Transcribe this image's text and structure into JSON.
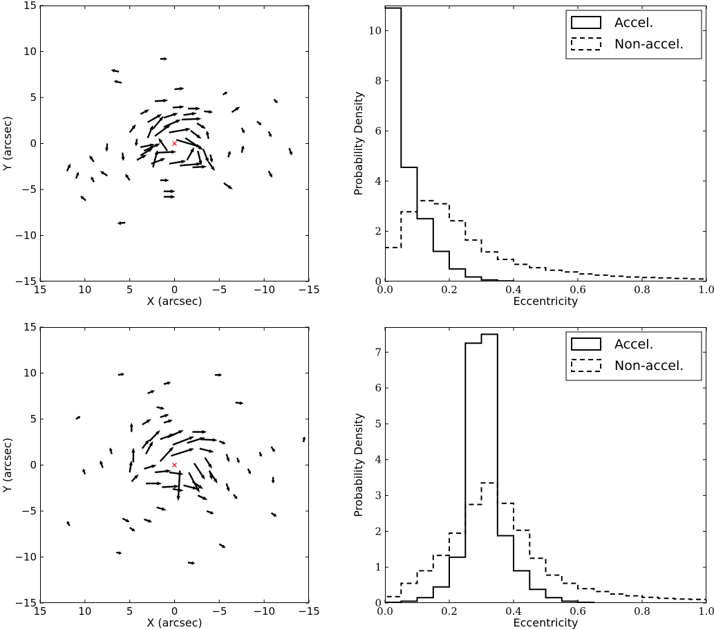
{
  "chart_data": [
    {
      "type": "scatter",
      "subtype": "velocity-vector-map",
      "panel": "top-left",
      "xlabel": "X (arcsec)",
      "ylabel": "Y (arcsec)",
      "xlim": [
        15,
        -15
      ],
      "ylim": [
        -15,
        15
      ],
      "xticks": [
        15,
        10,
        5,
        0,
        -5,
        -10,
        -15
      ],
      "yticks": [
        -15,
        -10,
        -5,
        0,
        5,
        10,
        15
      ],
      "xtick_labels": [
        "15",
        "10",
        "5",
        "0",
        "−5",
        "−10",
        "−15"
      ],
      "ytick_labels": [
        "−15",
        "−10",
        "−5",
        "0",
        "5",
        "10",
        "15"
      ],
      "center_marker": {
        "x": 0,
        "y": 0,
        "symbol": "x",
        "color": "#ff0000"
      },
      "arrow_color": "#000000",
      "arrows": [
        [
          1.6,
          9.2,
          -0.8,
          0.0
        ],
        [
          6.2,
          7.8,
          0.9,
          0.2
        ],
        [
          5.9,
          6.6,
          0.9,
          0.2
        ],
        [
          0.0,
          5.9,
          -1.1,
          0.1
        ],
        [
          2.2,
          4.6,
          -1.5,
          0.1
        ],
        [
          -5.4,
          5.3,
          -0.5,
          0.3
        ],
        [
          -11.1,
          4.8,
          -0.4,
          -0.4
        ],
        [
          -6.4,
          3.4,
          -0.9,
          0.6
        ],
        [
          -9.2,
          2.4,
          -0.5,
          -0.4
        ],
        [
          -7.5,
          1.7,
          -0.3,
          -0.6
        ],
        [
          -10.5,
          1.3,
          -0.3,
          -0.6
        ],
        [
          -12.8,
          -0.5,
          -0.3,
          -0.8
        ],
        [
          -10.5,
          -3.0,
          -0.4,
          -0.7
        ],
        [
          -5.5,
          -4.3,
          -1.0,
          -0.7
        ],
        [
          -6.0,
          -1.5,
          -0.2,
          0.7
        ],
        [
          -7.5,
          -1.0,
          -0.2,
          0.8
        ],
        [
          -3.8,
          0.5,
          0.2,
          0.9
        ],
        [
          1.6,
          -4.0,
          -1.0,
          0.0
        ],
        [
          1.2,
          -5.2,
          -1.3,
          0.0
        ],
        [
          1.2,
          -5.8,
          -1.3,
          0.0
        ],
        [
          5.5,
          -8.6,
          0.9,
          -0.1
        ],
        [
          9.9,
          -6.2,
          0.6,
          0.5
        ],
        [
          7.5,
          -3.5,
          0.8,
          0.5
        ],
        [
          5.0,
          -4.0,
          0.5,
          0.7
        ],
        [
          9.0,
          -4.2,
          0.3,
          0.6
        ],
        [
          11.0,
          -3.8,
          -0.3,
          0.7
        ],
        [
          12.0,
          -3.0,
          -0.4,
          0.8
        ],
        [
          9.0,
          -2.0,
          0.5,
          0.7
        ],
        [
          7.5,
          0.0,
          0.1,
          -0.9
        ],
        [
          5.8,
          -1.0,
          -0.1,
          -0.9
        ],
        [
          5.0,
          1.2,
          -0.7,
          0.9
        ],
        [
          4.2,
          0.5,
          0.1,
          -0.8
        ],
        [
          3.8,
          3.2,
          -1.0,
          0.5
        ],
        [
          0.2,
          3.9,
          -1.3,
          0.1
        ],
        [
          -1.5,
          3.8,
          -1.4,
          0.0
        ],
        [
          -3.3,
          3.5,
          -1.0,
          -0.1
        ],
        [
          -1.0,
          3.1,
          -1.5,
          0.2
        ],
        [
          1.2,
          2.8,
          -1.6,
          0.5
        ],
        [
          3.0,
          2.3,
          -1.6,
          0.9
        ],
        [
          -2.5,
          2.2,
          -1.0,
          -0.6
        ],
        [
          -0.8,
          2.6,
          -2.2,
          0.1
        ],
        [
          2.4,
          1.6,
          -1.2,
          1.4
        ],
        [
          1.2,
          1.8,
          -1.9,
          0.8
        ],
        [
          -1.8,
          1.4,
          -1.2,
          -0.9
        ],
        [
          0.6,
          1.2,
          -2.4,
          0.4
        ],
        [
          -0.2,
          0.4,
          -2.8,
          -0.8
        ],
        [
          3.0,
          0.6,
          -0.6,
          1.4
        ],
        [
          2.2,
          0.8,
          -1.8,
          1.3
        ],
        [
          -1.2,
          0.6,
          -2.0,
          -1.3
        ],
        [
          -3.2,
          -0.6,
          -0.6,
          -1.5
        ],
        [
          -4.0,
          -1.2,
          -0.2,
          -0.9
        ],
        [
          -2.6,
          -0.8,
          -0.4,
          -1.6
        ],
        [
          -1.4,
          -1.8,
          -0.8,
          1.4
        ],
        [
          -0.6,
          -2.4,
          -2.4,
          0.2
        ],
        [
          0.6,
          -2.2,
          -1.9,
          0.3
        ],
        [
          2.6,
          -2.2,
          -1.6,
          0.6
        ],
        [
          3.8,
          -1.3,
          -1.4,
          0.8
        ],
        [
          3.8,
          -0.4,
          -1.6,
          0.3
        ],
        [
          4.2,
          -1.8,
          -1.1,
          0.6
        ],
        [
          2.0,
          -1.0,
          -2.2,
          0.1
        ],
        [
          0.8,
          -0.8,
          1.0,
          1.4
        ],
        [
          2.4,
          -2.6,
          -0.5,
          1.9
        ],
        [
          3.4,
          -0.8,
          -1.8,
          0.8
        ],
        [
          -2.0,
          -2.6,
          -1.6,
          0.1
        ],
        [
          -3.8,
          -2.0,
          -0.7,
          -1.0
        ]
      ]
    },
    {
      "type": "histogram",
      "panel": "top-right",
      "xlabel": "Eccentricity",
      "ylabel": "Probability Density",
      "xlim": [
        0.0,
        1.0
      ],
      "ylim": [
        0,
        11.0
      ],
      "xticks": [
        0.0,
        0.2,
        0.4,
        0.6,
        0.8,
        1.0
      ],
      "yticks": [
        0,
        2,
        4,
        6,
        8,
        10
      ],
      "xtick_labels": [
        "0.0",
        "0.2",
        "0.4",
        "0.6",
        "0.8",
        "1.0"
      ],
      "ytick_labels": [
        "0",
        "2",
        "4",
        "6",
        "8",
        "10"
      ],
      "bin_edges": [
        0.0,
        0.05,
        0.1,
        0.15,
        0.2,
        0.25,
        0.3,
        0.35,
        0.4,
        0.45,
        0.5,
        0.55,
        0.6,
        0.65,
        0.7,
        0.75,
        0.8,
        0.85,
        0.9,
        0.95,
        1.0
      ],
      "series": [
        {
          "name": "Accel.",
          "style": "solid",
          "values": [
            10.9,
            4.55,
            2.5,
            1.2,
            0.5,
            0.18,
            0.06,
            0.02,
            0.0,
            0.0,
            0,
            0,
            0,
            0,
            0,
            0,
            0,
            0,
            0,
            0
          ]
        },
        {
          "name": "Non-accel.",
          "style": "dashed",
          "values": [
            1.35,
            2.78,
            3.22,
            3.1,
            2.42,
            1.65,
            1.18,
            0.88,
            0.68,
            0.55,
            0.45,
            0.38,
            0.3,
            0.25,
            0.21,
            0.18,
            0.16,
            0.14,
            0.12,
            0.1
          ]
        }
      ],
      "legend": {
        "location": "upper right",
        "entries": [
          "Accel.",
          "Non-accel."
        ]
      }
    },
    {
      "type": "scatter",
      "subtype": "velocity-vector-map",
      "panel": "bottom-left",
      "xlabel": "X (arcsec)",
      "ylabel": "Y (arcsec)",
      "xlim": [
        15,
        -15
      ],
      "ylim": [
        -15,
        15
      ],
      "xticks": [
        15,
        10,
        5,
        0,
        -5,
        -10,
        -15
      ],
      "yticks": [
        -15,
        -10,
        -5,
        0,
        5,
        10,
        15
      ],
      "xtick_labels": [
        "15",
        "10",
        "5",
        "0",
        "−5",
        "−10",
        "−15"
      ],
      "ytick_labels": [
        "−15",
        "−10",
        "−5",
        "0",
        "5",
        "10",
        "15"
      ],
      "center_marker": {
        "x": 0,
        "y": 0,
        "symbol": "x",
        "color": "#ff0000"
      },
      "arrow_color": "#000000",
      "arrows": [
        [
          6.3,
          9.8,
          -0.7,
          0.1
        ],
        [
          1.2,
          8.8,
          -0.8,
          0.2
        ],
        [
          3.0,
          7.8,
          -0.8,
          0.3
        ],
        [
          -4.5,
          9.8,
          -0.8,
          0.0
        ],
        [
          -6.8,
          6.8,
          -0.9,
          -0.1
        ],
        [
          11.0,
          5.0,
          -0.5,
          0.3
        ],
        [
          2.0,
          6.3,
          -0.9,
          -0.2
        ],
        [
          1.6,
          5.2,
          -1.0,
          0.3
        ],
        [
          1.2,
          4.6,
          -1.0,
          0.3
        ],
        [
          -14.4,
          2.5,
          -0.1,
          0.6
        ],
        [
          -10.8,
          2.0,
          -0.4,
          -0.6
        ],
        [
          -9.5,
          1.4,
          -0.2,
          -0.5
        ],
        [
          -8.2,
          -0.4,
          -0.3,
          -0.6
        ],
        [
          -11.0,
          -1.3,
          0.0,
          -0.7
        ],
        [
          -7.0,
          0.8,
          -0.2,
          -0.6
        ],
        [
          -10.8,
          -5.2,
          -0.6,
          -0.4
        ],
        [
          -5.0,
          -8.6,
          -0.7,
          -0.4
        ],
        [
          -3.6,
          -5.0,
          -0.8,
          -0.3
        ],
        [
          -6.6,
          -3.2,
          -0.4,
          -0.5
        ],
        [
          -1.5,
          -10.6,
          -0.8,
          -0.1
        ],
        [
          11.7,
          -6.6,
          0.3,
          0.5
        ],
        [
          6.5,
          -9.5,
          -0.6,
          -0.1
        ],
        [
          5.8,
          -5.8,
          -0.8,
          -0.4
        ],
        [
          5.0,
          -6.8,
          -0.6,
          -0.4
        ],
        [
          3.4,
          -5.9,
          -0.9,
          -0.3
        ],
        [
          2.0,
          -4.6,
          -1.1,
          -0.3
        ],
        [
          10.0,
          -1.0,
          0.2,
          0.6
        ],
        [
          8.0,
          -0.3,
          0.3,
          0.8
        ],
        [
          7.0,
          1.2,
          0.2,
          0.7
        ],
        [
          4.8,
          3.6,
          0.0,
          1.0
        ],
        [
          3.6,
          4.4,
          -1.0,
          0.6
        ],
        [
          -2.0,
          3.6,
          -1.6,
          0.0
        ],
        [
          -3.0,
          2.8,
          -1.8,
          -0.1
        ],
        [
          -5.0,
          2.6,
          -0.7,
          -0.3
        ],
        [
          -5.8,
          1.2,
          -0.3,
          -0.9
        ],
        [
          -3.9,
          -0.6,
          -0.3,
          -1.0
        ],
        [
          -5.8,
          -2.0,
          -0.3,
          -0.9
        ],
        [
          -2.6,
          -3.3,
          -1.1,
          -0.5
        ],
        [
          -1.0,
          -2.2,
          -1.6,
          -0.4
        ],
        [
          0.2,
          -2.6,
          -1.2,
          -0.2
        ],
        [
          1.4,
          -2.4,
          -1.9,
          0.1
        ],
        [
          3.2,
          -2.0,
          -1.8,
          0.0
        ],
        [
          4.8,
          -1.8,
          -0.8,
          0.8
        ],
        [
          5.0,
          -0.8,
          -0.2,
          1.3
        ],
        [
          4.6,
          0.3,
          0.0,
          1.6
        ],
        [
          3.2,
          1.2,
          -0.8,
          1.4
        ],
        [
          1.6,
          2.8,
          -1.6,
          0.6
        ],
        [
          0.2,
          2.2,
          -2.4,
          0.9
        ],
        [
          -1.4,
          2.4,
          -2.0,
          0.6
        ],
        [
          -2.8,
          1.8,
          -1.6,
          -0.4
        ],
        [
          -3.4,
          0.8,
          -0.8,
          -1.2
        ],
        [
          -2.2,
          0.2,
          -1.2,
          -1.8
        ],
        [
          -0.6,
          -0.6,
          0.2,
          -3.3
        ],
        [
          -1.6,
          -0.8,
          -1.2,
          -2.2
        ],
        [
          0.6,
          -0.8,
          -1.6,
          -0.2
        ],
        [
          2.2,
          -0.8,
          -1.8,
          0.2
        ],
        [
          3.4,
          -0.4,
          -1.4,
          0.4
        ],
        [
          1.6,
          0.4,
          -1.5,
          1.6
        ],
        [
          0.4,
          1.0,
          -2.6,
          0.8
        ],
        [
          -4.0,
          -0.8,
          -0.8,
          -1.2
        ],
        [
          2.8,
          2.6,
          -1.2,
          1.2
        ],
        [
          0.8,
          3.0,
          -1.8,
          0.8
        ],
        [
          -2.0,
          -1.8,
          -1.2,
          -0.8
        ],
        [
          3.6,
          1.8,
          -0.8,
          1.0
        ]
      ]
    },
    {
      "type": "histogram",
      "panel": "bottom-right",
      "xlabel": "Eccentricity",
      "ylabel": "Probability Density",
      "xlim": [
        0.0,
        1.0
      ],
      "ylim": [
        0,
        7.7
      ],
      "xticks": [
        0.0,
        0.2,
        0.4,
        0.6,
        0.8,
        1.0
      ],
      "yticks": [
        0,
        1,
        2,
        3,
        4,
        5,
        6,
        7
      ],
      "xtick_labels": [
        "0.0",
        "0.2",
        "0.4",
        "0.6",
        "0.8",
        "1.0"
      ],
      "ytick_labels": [
        "0",
        "1",
        "2",
        "3",
        "4",
        "5",
        "6",
        "7"
      ],
      "bin_edges": [
        0.0,
        0.05,
        0.1,
        0.15,
        0.2,
        0.25,
        0.3,
        0.35,
        0.4,
        0.45,
        0.5,
        0.55,
        0.6,
        0.65,
        0.7,
        0.75,
        0.8,
        0.85,
        0.9,
        0.95,
        1.0
      ],
      "series": [
        {
          "name": "Accel.",
          "style": "solid",
          "values": [
            0.02,
            0.05,
            0.15,
            0.45,
            1.28,
            7.25,
            7.5,
            1.88,
            0.9,
            0.38,
            0.15,
            0.05,
            0.02,
            0.0,
            0,
            0,
            0,
            0,
            0,
            0
          ]
        },
        {
          "name": "Non-accel.",
          "style": "dashed",
          "values": [
            0.18,
            0.55,
            0.9,
            1.33,
            1.95,
            2.75,
            3.35,
            2.78,
            2.03,
            1.25,
            0.78,
            0.55,
            0.4,
            0.32,
            0.25,
            0.2,
            0.16,
            0.13,
            0.11,
            0.1
          ]
        }
      ],
      "legend": {
        "location": "upper right",
        "entries": [
          "Accel.",
          "Non-accel."
        ]
      }
    }
  ]
}
